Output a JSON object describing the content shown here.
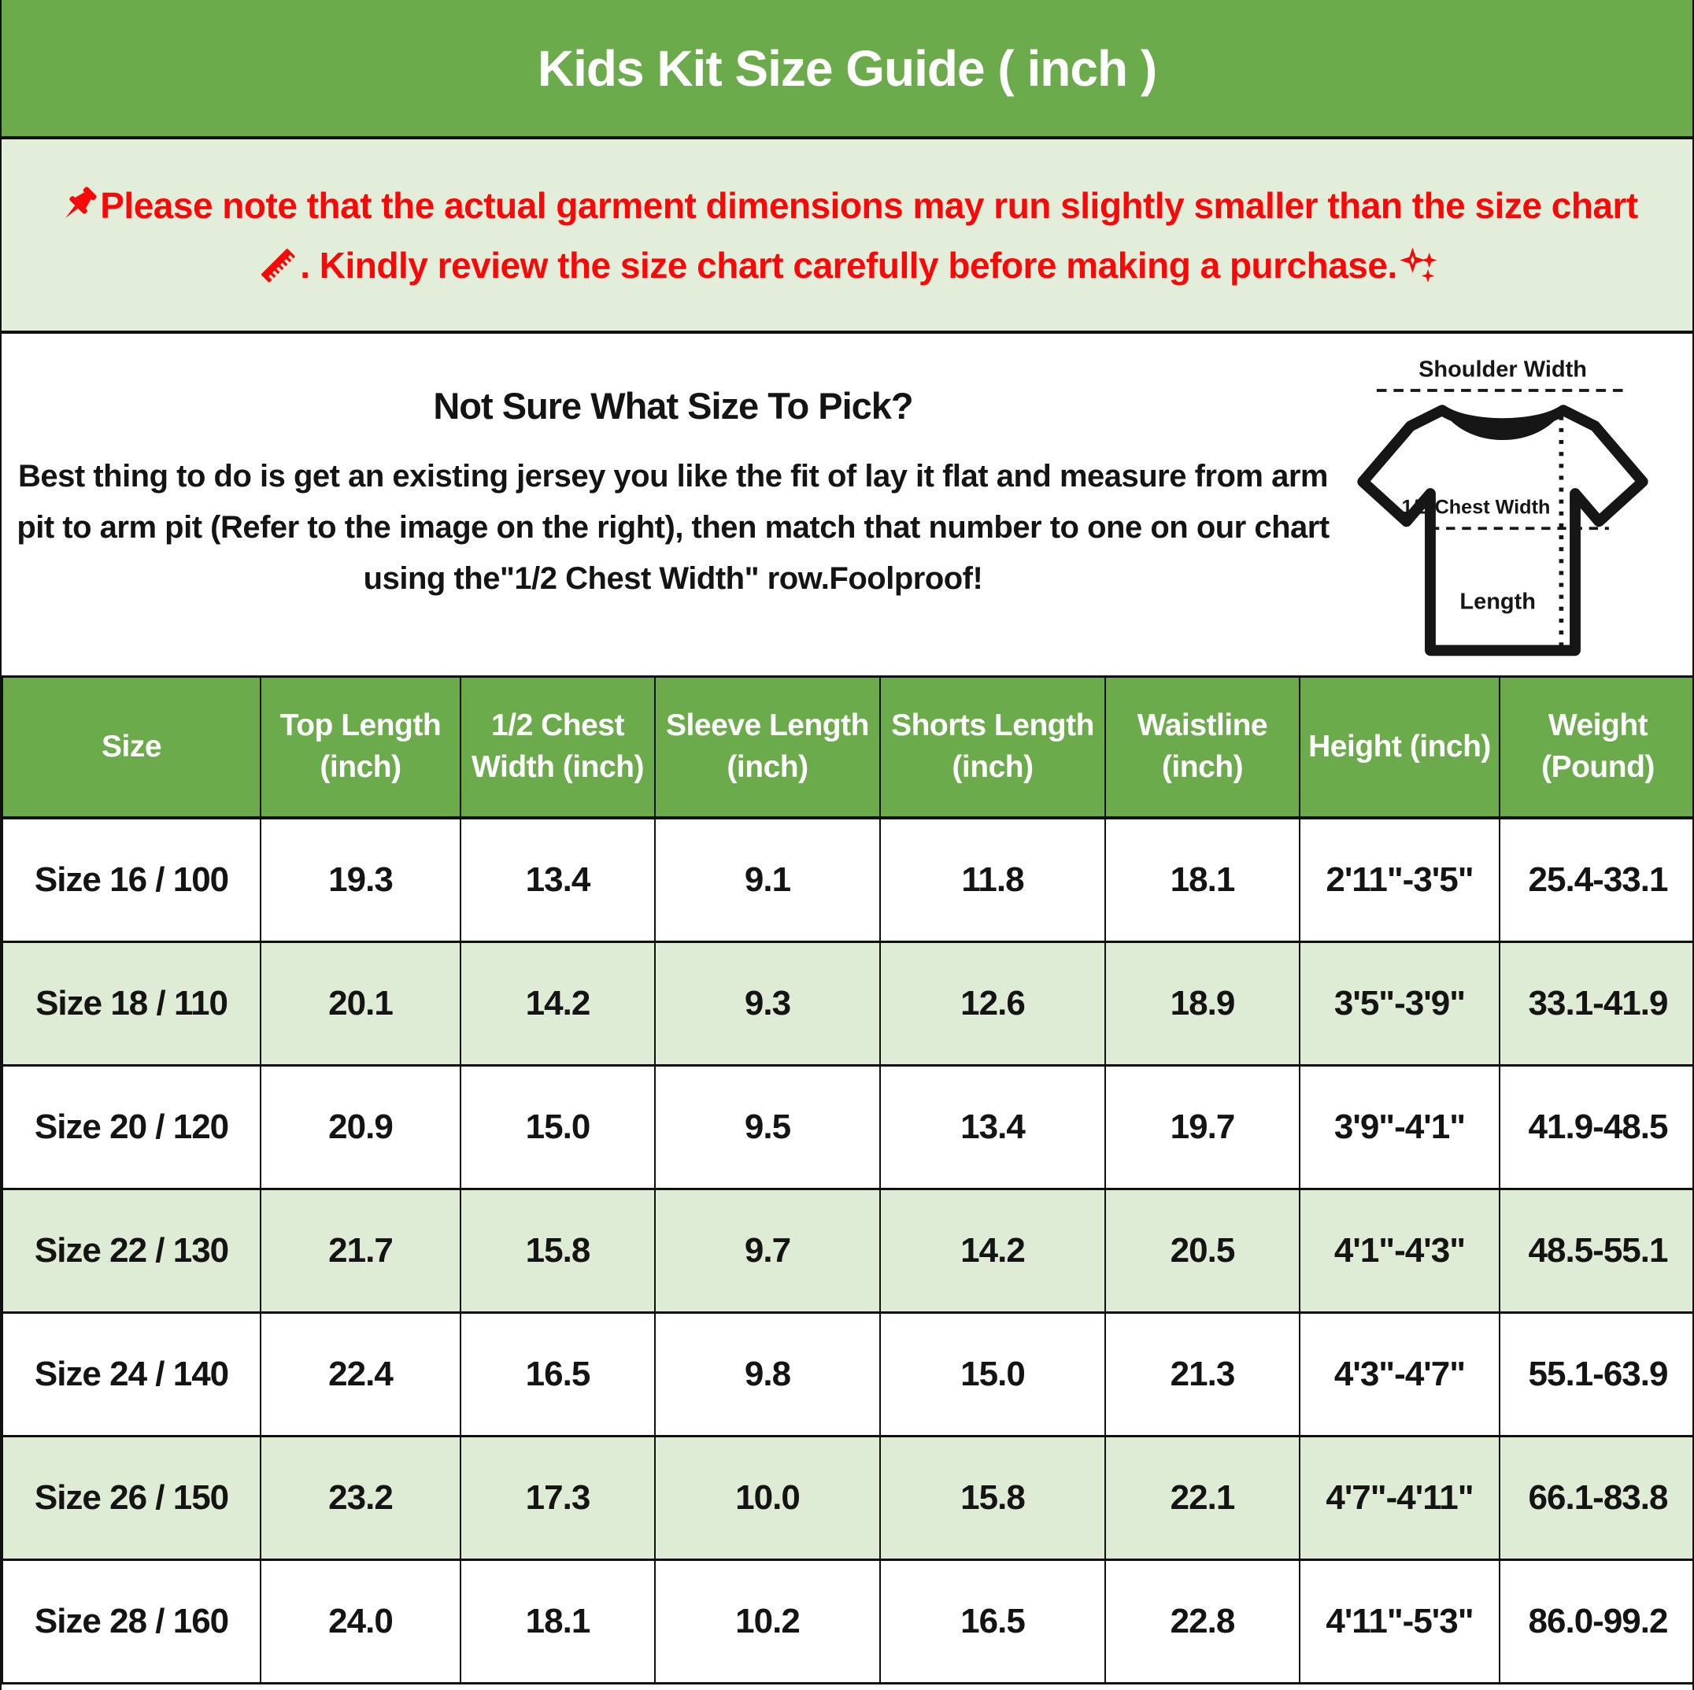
{
  "title": "Kids Kit Size Guide ( inch )",
  "colors": {
    "accent_green": "#6cab4b",
    "notice_bg": "#e3eeda",
    "alt_row_bg": "#dfecd5",
    "notice_red": "#f90808"
  },
  "notice": {
    "icons": [
      "pushpin-icon",
      "ruler-icon",
      "sparkles-icon"
    ],
    "line1": "Please note that the actual garment dimensions may run slightly smaller than the size chart",
    "line2": ". Kindly review the size chart carefully before making a purchase."
  },
  "help": {
    "heading": "Not Sure What Size To Pick?",
    "body_lines": [
      "Best thing to do is get an existing jersey you like the fit of lay it flat and measure from arm",
      "pit to arm pit (Refer to the image on the right), then match that number to one on our chart",
      "using the\"1/2 Chest Width\" row.Foolproof!"
    ]
  },
  "diagram": {
    "labels": {
      "shoulder": "Shoulder Width",
      "chest": "1/2 Chest Width",
      "length": "Length"
    }
  },
  "table": {
    "headers": [
      "Size",
      "Top Length (inch)",
      "1/2 Chest Width (inch)",
      "Sleeve Length (inch)",
      "Shorts Length (inch)",
      "Waistline (inch)",
      "Height (inch)",
      "Weight (Pound)"
    ],
    "rows": [
      [
        "Size 16 / 100",
        "19.3",
        "13.4",
        "9.1",
        "11.8",
        "18.1",
        "2'11\"-3'5\"",
        "25.4-33.1"
      ],
      [
        "Size 18 / 110",
        "20.1",
        "14.2",
        "9.3",
        "12.6",
        "18.9",
        "3'5\"-3'9\"",
        "33.1-41.9"
      ],
      [
        "Size 20 / 120",
        "20.9",
        "15.0",
        "9.5",
        "13.4",
        "19.7",
        "3'9\"-4'1\"",
        "41.9-48.5"
      ],
      [
        "Size 22 / 130",
        "21.7",
        "15.8",
        "9.7",
        "14.2",
        "20.5",
        "4'1\"-4'3\"",
        "48.5-55.1"
      ],
      [
        "Size 24 / 140",
        "22.4",
        "16.5",
        "9.8",
        "15.0",
        "21.3",
        "4'3\"-4'7\"",
        "55.1-63.9"
      ],
      [
        "Size 26 / 150",
        "23.2",
        "17.3",
        "10.0",
        "15.8",
        "22.1",
        "4'7\"-4'11\"",
        "66.1-83.8"
      ],
      [
        "Size 28 / 160",
        "24.0",
        "18.1",
        "10.2",
        "16.5",
        "22.8",
        "4'11\"-5'3\"",
        "86.0-99.2"
      ]
    ]
  }
}
